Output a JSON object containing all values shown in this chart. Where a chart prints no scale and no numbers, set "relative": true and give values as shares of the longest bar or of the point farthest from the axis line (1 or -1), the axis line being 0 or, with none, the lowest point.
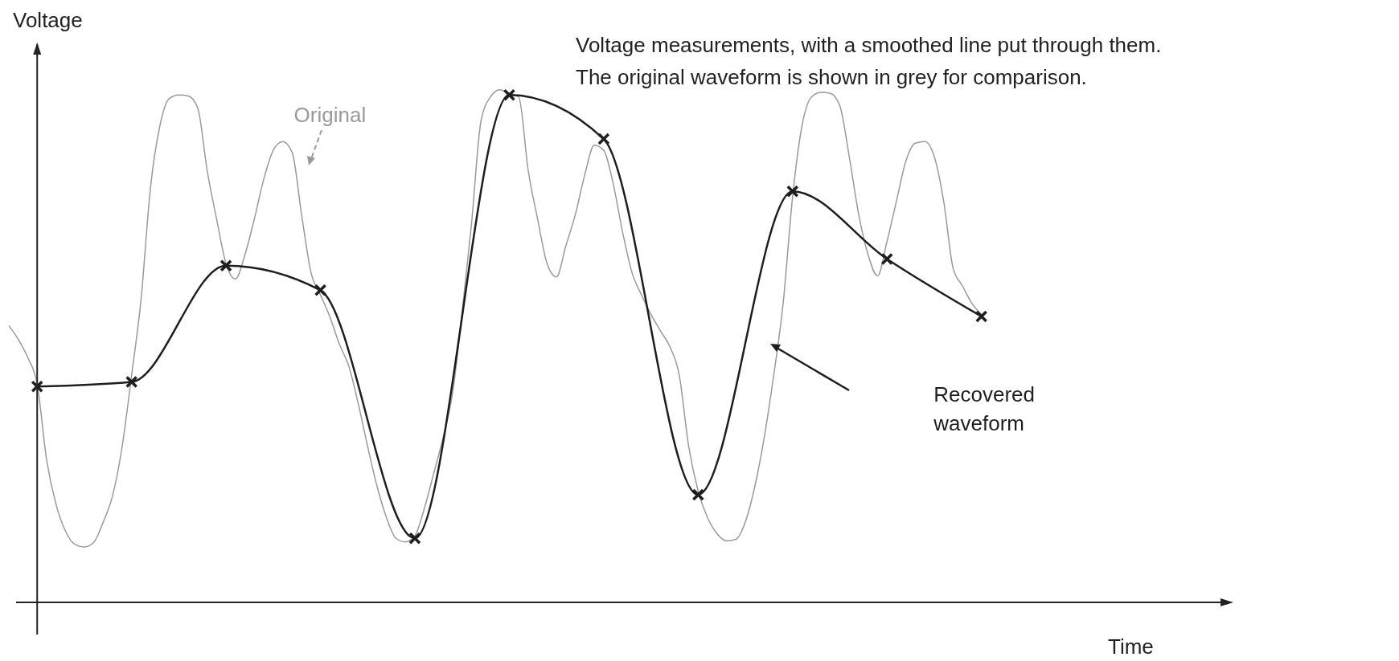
{
  "chart_data": {
    "type": "line",
    "relative": true,
    "xlabel": "Time",
    "ylabel": "Voltage",
    "annotations": [
      "Voltage measurements, with a smoothed line put through them.\nThe original waveform is shown in grey for comparison."
    ],
    "categories": [
      null,
      null,
      null,
      null,
      null,
      null,
      null,
      null,
      null,
      null,
      null,
      null,
      null,
      null,
      null,
      null,
      null,
      null,
      null,
      null,
      null,
      null,
      null,
      null,
      null,
      null,
      null,
      null,
      null,
      null,
      null,
      null,
      null,
      null,
      null,
      null,
      null,
      null,
      null,
      null,
      null,
      null,
      null,
      null,
      null,
      null,
      null,
      null,
      null,
      null,
      null,
      null,
      null,
      null,
      null,
      null,
      null,
      null,
      null,
      null,
      null,
      null,
      null,
      null,
      null,
      null,
      null,
      null,
      null,
      null,
      null,
      null,
      null,
      null,
      null,
      null,
      null,
      null,
      null,
      null,
      null,
      null,
      null,
      null,
      null,
      null,
      null,
      null,
      null,
      null,
      null,
      null,
      null,
      null,
      null,
      null,
      null,
      null,
      null,
      null,
      null,
      null,
      null,
      null,
      null,
      null,
      null,
      null,
      null,
      null,
      null,
      null,
      null,
      null,
      null,
      null,
      null,
      null,
      null,
      null,
      null,
      null,
      null,
      null,
      null,
      null,
      null,
      null,
      null,
      null
    ],
    "series": [
      {
        "name": "Original",
        "color": "#9a9a9a",
        "marker": "none",
        "values": [
          0.54,
          0.513,
          0.478,
          0.426,
          0.278,
          0.191,
          0.139,
          0.113,
          0.108,
          0.117,
          0.157,
          0.209,
          0.304,
          0.443,
          0.591,
          0.809,
          0.93,
          0.983,
          0.99,
          0.988,
          0.965,
          0.843,
          0.748,
          0.661,
          0.631,
          0.678,
          0.748,
          0.826,
          0.882,
          0.899,
          0.878,
          0.757,
          0.643,
          0.6,
          0.557,
          0.504,
          0.461,
          0.388,
          0.304,
          0.226,
          0.165,
          0.125,
          0.118,
          0.13,
          0.183,
          0.252,
          0.322,
          0.409,
          0.565,
          0.739,
          0.939,
          0.986,
          1,
          0.993,
          0.986,
          0.843,
          0.748,
          0.661,
          0.635,
          0.696,
          0.757,
          0.835,
          0.892,
          0.882,
          0.817,
          0.722,
          0.643,
          0.6,
          0.562,
          0.53,
          0.499,
          0.443,
          0.304,
          0.217,
          0.165,
          0.134,
          0.12,
          0.123,
          0.157,
          0.226,
          0.322,
          0.443,
          0.583,
          0.791,
          0.93,
          0.986,
          0.995,
          0.993,
          0.969,
          0.87,
          0.757,
          0.678,
          0.637,
          0.704,
          0.783,
          0.861,
          0.896,
          0.899,
          0.87,
          0.783,
          0.652,
          0.617,
          0.583,
          0.562,
          null,
          null,
          null,
          null,
          null,
          null,
          null,
          null,
          null,
          null,
          null,
          null,
          null,
          null,
          null,
          null,
          null,
          null,
          null,
          null,
          null,
          null,
          null,
          null,
          null,
          null
        ]
      },
      {
        "name": "Recovered waveform",
        "color": "#1e1e1e",
        "marker": "cross",
        "values": [
          null,
          null,
          null,
          0.421,
          null,
          null,
          null,
          null,
          null,
          null,
          null,
          null,
          null,
          0.43,
          null,
          null,
          null,
          null,
          null,
          null,
          null,
          null,
          null,
          0.657,
          null,
          null,
          null,
          null,
          null,
          null,
          null,
          null,
          null,
          0.609,
          null,
          null,
          null,
          null,
          null,
          null,
          null,
          null,
          null,
          0.125,
          null,
          null,
          null,
          null,
          null,
          null,
          null,
          null,
          null,
          0.99,
          null,
          null,
          null,
          null,
          null,
          null,
          null,
          null,
          null,
          0.904,
          null,
          null,
          null,
          null,
          null,
          null,
          null,
          null,
          null,
          0.21,
          null,
          null,
          null,
          null,
          null,
          null,
          null,
          null,
          null,
          0.802,
          null,
          null,
          null,
          null,
          null,
          null,
          null,
          null,
          null,
          0.67,
          null,
          null,
          null,
          null,
          null,
          null,
          null,
          null,
          null,
          0.558,
          null,
          null,
          null,
          null,
          null,
          null,
          null,
          null,
          null,
          null,
          null,
          null,
          null,
          null,
          null,
          null,
          null,
          null,
          null,
          null,
          null,
          null,
          null,
          null,
          null,
          null
        ]
      }
    ]
  }
}
